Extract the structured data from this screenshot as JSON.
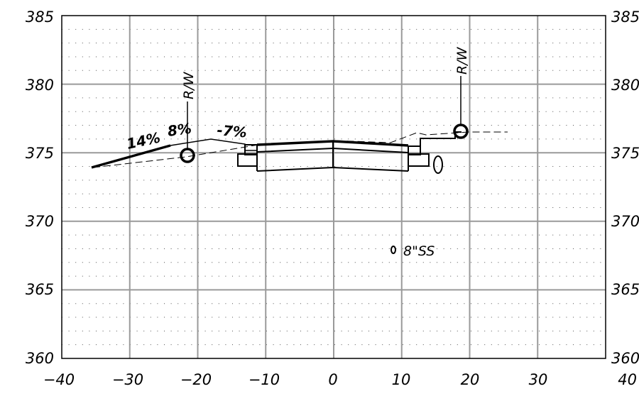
{
  "chart_data": {
    "type": "cross-section",
    "xlim": [
      -40,
      40
    ],
    "ylim": [
      360,
      385
    ],
    "grid": true,
    "x_ticks": [
      "−40",
      "−30",
      "−20",
      "−10",
      "0",
      "10",
      "20",
      "30",
      "40"
    ],
    "y_ticks": [
      "360",
      "365",
      "370",
      "375",
      "380",
      "385"
    ],
    "grade_labels": [
      {
        "text": "14%",
        "x": -27.5,
        "y": 375.9
      },
      {
        "text": "8%",
        "x": -21.5,
        "y": 376.6
      },
      {
        "text": "-7%",
        "x": -14.5,
        "y": 376.3
      }
    ],
    "row_labels": [
      {
        "text": "R/W",
        "x": -21,
        "elev": 375.0
      },
      {
        "text": "R/W",
        "x": 19,
        "elev": 376.7
      }
    ],
    "utility_label": {
      "text": "8\"SS",
      "x": 9,
      "y": 368
    }
  }
}
